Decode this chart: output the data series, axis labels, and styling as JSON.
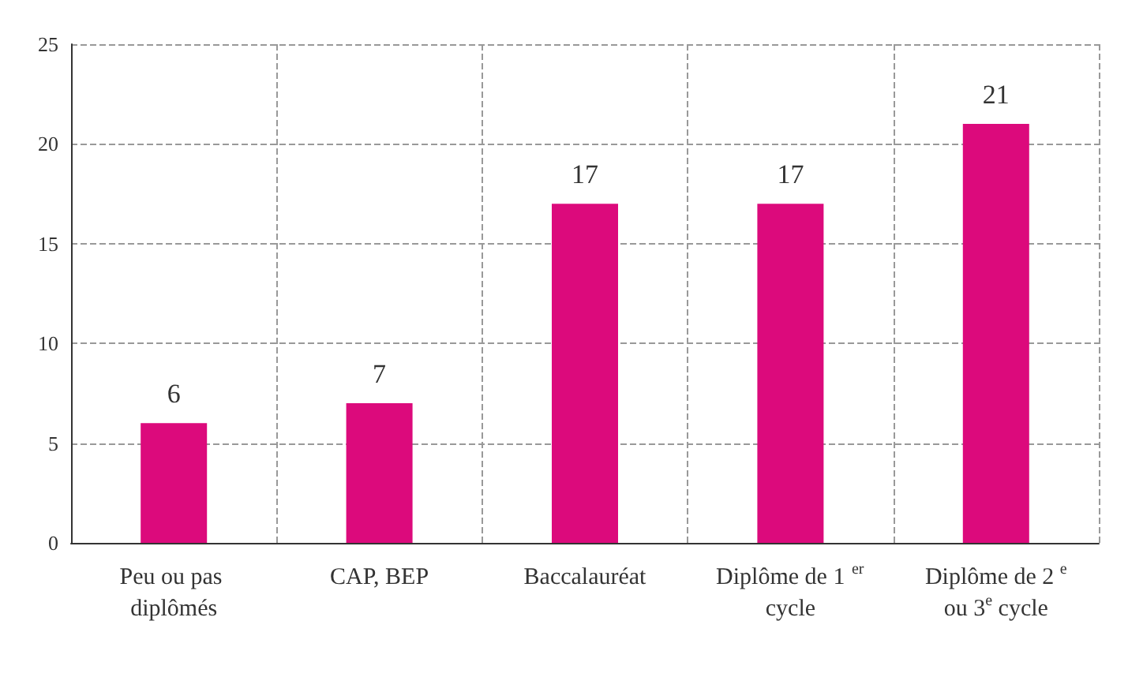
{
  "chart_data": {
    "type": "bar",
    "categories": [
      "Peu ou pas diplômés",
      "CAP, BEP",
      "Baccalauréat",
      "Diplôme de 1$^{er}$ cycle",
      "Diplôme de 2$^{e}$ ou 3$^{e}$ cycle"
    ],
    "values": [
      6,
      7,
      17,
      17,
      21
    ],
    "color": "#dc0a7c",
    "ylim": [
      0,
      25
    ],
    "yticks": [
      0,
      5,
      10,
      15,
      20,
      25
    ],
    "grid": true,
    "data_labels": true
  }
}
